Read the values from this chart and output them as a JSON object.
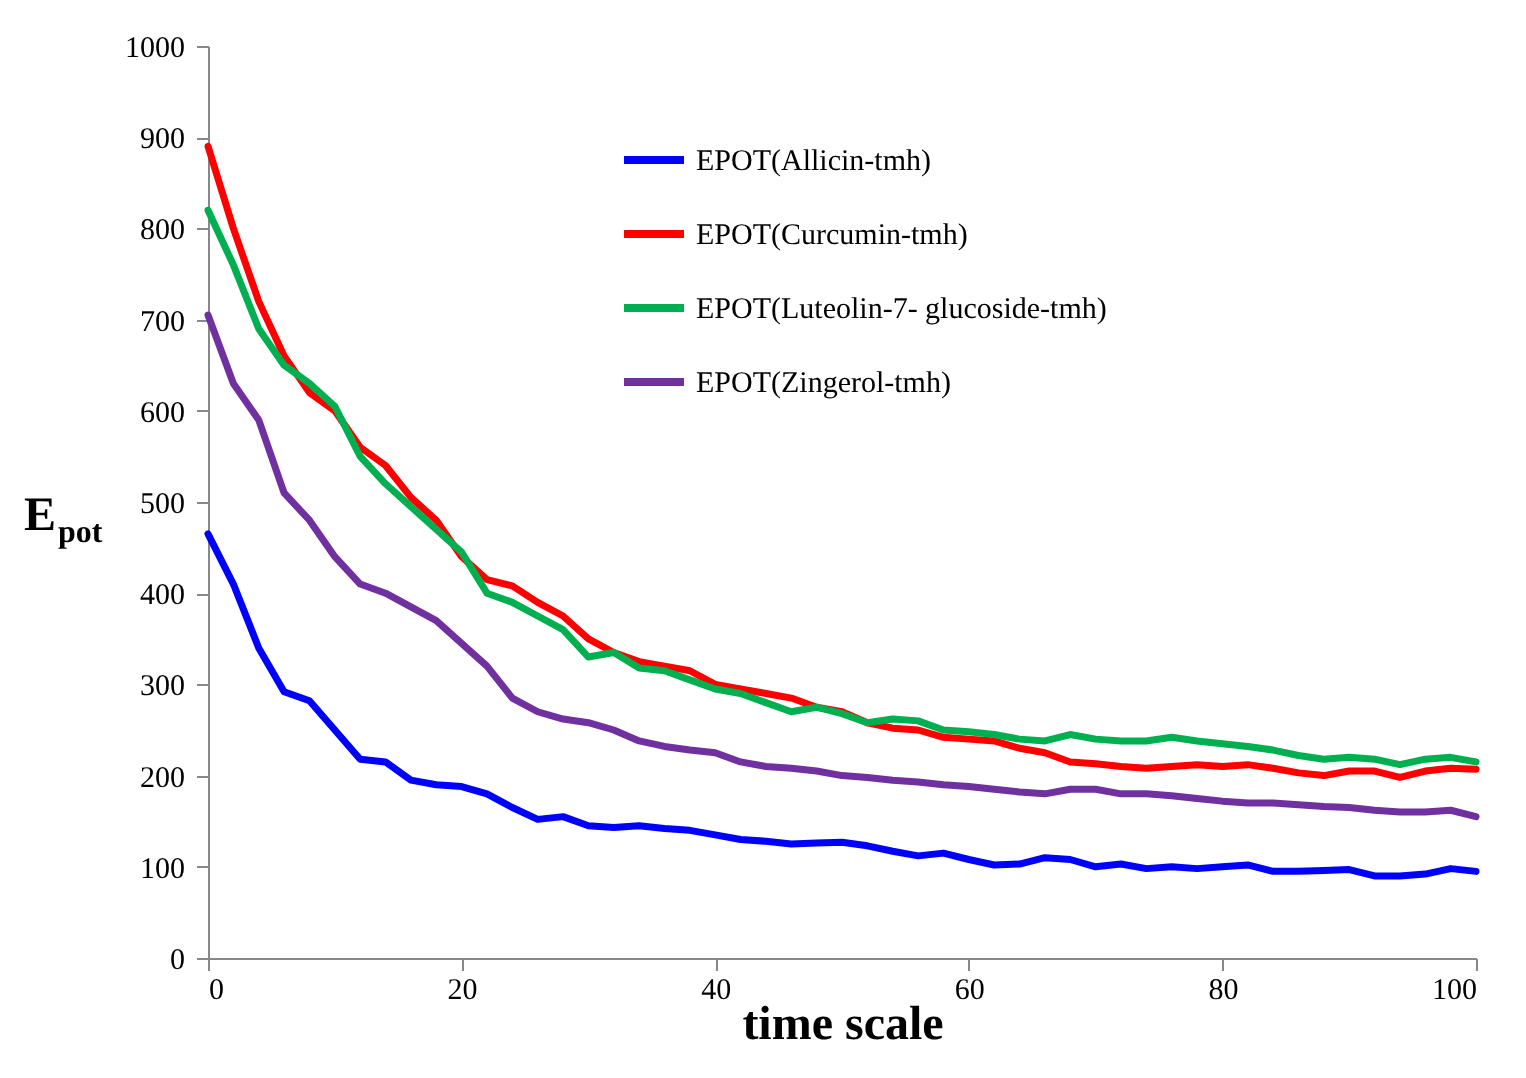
{
  "chart_data": {
    "type": "line",
    "xlabel": "time scale",
    "ylabel": "E$_{pot}$",
    "xlim": [
      0,
      100
    ],
    "xticks": [
      0,
      20,
      40,
      60,
      80,
      100
    ],
    "ylim": [
      0,
      1000
    ],
    "yticks": [
      0,
      100,
      200,
      300,
      400,
      500,
      600,
      700,
      800,
      900,
      1000
    ],
    "grid": false,
    "legend": "top right",
    "marker": "none",
    "line_style": "solid",
    "x": [
      0,
      2,
      4,
      6,
      8,
      10,
      12,
      14,
      16,
      18,
      20,
      22,
      24,
      26,
      28,
      30,
      32,
      34,
      36,
      38,
      40,
      42,
      44,
      46,
      48,
      50,
      52,
      54,
      56,
      58,
      60,
      62,
      64,
      66,
      68,
      70,
      72,
      74,
      76,
      78,
      80,
      82,
      84,
      86,
      88,
      90,
      92,
      94,
      96,
      98,
      100
    ],
    "series": [
      {
        "name": "EPOT(Allicin-tmh)",
        "color": "#0000ff",
        "values": [
          465,
          410,
          340,
          292,
          282,
          250,
          218,
          215,
          195,
          190,
          188,
          180,
          165,
          152,
          155,
          145,
          143,
          145,
          142,
          140,
          135,
          130,
          128,
          125,
          126,
          127,
          123,
          117,
          112,
          115,
          108,
          102,
          103,
          110,
          108,
          100,
          103,
          98,
          100,
          98,
          100,
          102,
          95,
          95,
          96,
          97,
          90,
          90,
          92,
          98,
          95
        ]
      },
      {
        "name": "EPOT(Curcumin-tmh)",
        "color": "#ff0000",
        "values": [
          890,
          800,
          720,
          660,
          620,
          600,
          560,
          540,
          505,
          480,
          440,
          415,
          408,
          390,
          375,
          350,
          335,
          325,
          320,
          315,
          300,
          295,
          290,
          285,
          275,
          270,
          258,
          252,
          250,
          242,
          240,
          238,
          230,
          225,
          215,
          213,
          210,
          208,
          210,
          212,
          210,
          212,
          208,
          203,
          200,
          205,
          205,
          198,
          205,
          208,
          207
        ]
      },
      {
        "name": "EPOT(Luteolin-7- glucoside-tmh)",
        "color": "#00b050",
        "values": [
          820,
          760,
          690,
          650,
          630,
          605,
          550,
          520,
          495,
          470,
          445,
          400,
          390,
          375,
          360,
          330,
          335,
          318,
          315,
          305,
          295,
          290,
          280,
          270,
          275,
          268,
          258,
          262,
          260,
          250,
          248,
          245,
          240,
          238,
          245,
          240,
          238,
          238,
          242,
          238,
          235,
          232,
          228,
          222,
          218,
          220,
          218,
          212,
          218,
          220,
          215
        ]
      },
      {
        "name": "EPOT(Zingerol-tmh)",
        "color": "#7030a0",
        "values": [
          705,
          630,
          590,
          510,
          480,
          440,
          410,
          400,
          385,
          370,
          345,
          320,
          285,
          270,
          262,
          258,
          250,
          238,
          232,
          228,
          225,
          215,
          210,
          208,
          205,
          200,
          198,
          195,
          193,
          190,
          188,
          185,
          182,
          180,
          185,
          185,
          180,
          180,
          178,
          175,
          172,
          170,
          170,
          168,
          166,
          165,
          162,
          160,
          160,
          162,
          155
        ]
      }
    ]
  }
}
